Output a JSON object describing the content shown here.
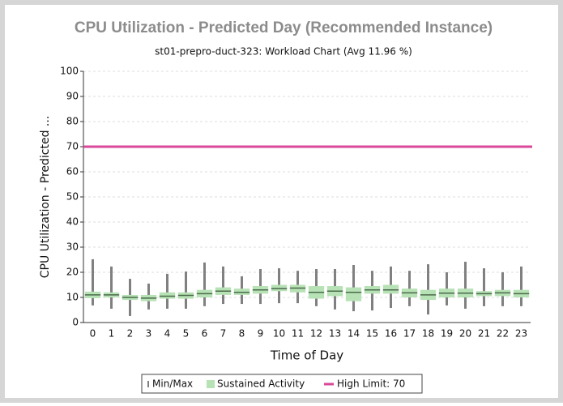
{
  "chart_data": {
    "type": "boxplot",
    "title": "CPU Utilization - Predicted Day (Recommended Instance)",
    "subtitle": "st01-prepro-duct-323: Workload Chart (Avg 11.96 %)",
    "x_label": "Time of Day",
    "y_label": "CPU Utilization - Predicted ...",
    "categories": [
      "0",
      "1",
      "2",
      "3",
      "4",
      "5",
      "6",
      "7",
      "8",
      "9",
      "10",
      "11",
      "12",
      "13",
      "14",
      "15",
      "16",
      "17",
      "18",
      "19",
      "20",
      "21",
      "22",
      "23"
    ],
    "ylim": [
      0,
      100
    ],
    "yticks": [
      0,
      10,
      20,
      30,
      40,
      50,
      60,
      70,
      80,
      90,
      100
    ],
    "grid": true,
    "series": [
      {
        "name": "Min/Max",
        "color": "#808080",
        "min": [
          6.8,
          5.5,
          2.6,
          5.2,
          5.5,
          5.5,
          6.5,
          7.4,
          7.4,
          7.4,
          7.7,
          7.7,
          6.5,
          5.2,
          4.5,
          4.8,
          5.8,
          6.5,
          3.2,
          6.8,
          5.5,
          6.5,
          6.5,
          6.5
        ],
        "max": [
          25.2,
          22.3,
          17.4,
          15.5,
          19.4,
          20.3,
          23.9,
          22.3,
          18.4,
          21.3,
          21.6,
          20.6,
          21.3,
          21.3,
          22.9,
          20.6,
          22.3,
          20.6,
          23.2,
          20,
          24.2,
          21.6,
          20,
          22.3
        ]
      },
      {
        "name": "Sustained Activity",
        "color": "#b7e2b5",
        "median_color": "#4a6a4a",
        "low": [
          9.7,
          10,
          9,
          8.5,
          9.5,
          9.5,
          10,
          11,
          11,
          11.5,
          12.5,
          12,
          9.5,
          10.5,
          8.5,
          11.5,
          11.5,
          10,
          9,
          10,
          10,
          10.5,
          10.5,
          10
        ],
        "high": [
          12.3,
          12,
          11,
          11,
          12,
          12,
          13,
          14,
          13.5,
          14.5,
          15,
          15,
          14.5,
          14.5,
          14,
          14.5,
          15,
          13.5,
          13,
          13.5,
          13.5,
          12.5,
          13,
          13
        ],
        "median": [
          11,
          11,
          10,
          9.7,
          10.5,
          10.8,
          11.5,
          12.5,
          12,
          13,
          13.5,
          13.7,
          12,
          12.5,
          12,
          13,
          13,
          11.8,
          11,
          11.7,
          11.7,
          11.5,
          11.8,
          11.5
        ]
      }
    ],
    "high_limit": {
      "name": "High Limit: 70",
      "value": 70,
      "color": "#d9489a"
    }
  }
}
